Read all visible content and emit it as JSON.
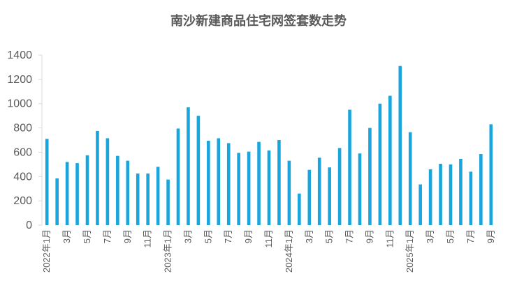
{
  "chart_data": {
    "type": "bar",
    "title": "南沙新建商品住宅网签套数走势",
    "categories": [
      "2022年1月",
      null,
      "3月",
      null,
      "5月",
      null,
      "7月",
      null,
      "9月",
      null,
      "11月",
      null,
      "2023年1月",
      null,
      "3月",
      null,
      "5月",
      null,
      "7月",
      null,
      "9月",
      null,
      "11月",
      null,
      "2024年1月",
      null,
      "3月",
      null,
      "5月",
      null,
      "7月",
      null,
      "9月",
      null,
      "11月",
      null,
      "2025年1月",
      null,
      "3月",
      null,
      "5月",
      null,
      "7月",
      null,
      "9月"
    ],
    "values": [
      710,
      385,
      520,
      510,
      575,
      775,
      715,
      570,
      530,
      425,
      425,
      480,
      375,
      795,
      970,
      900,
      695,
      715,
      675,
      595,
      605,
      685,
      615,
      700,
      530,
      260,
      455,
      555,
      475,
      635,
      950,
      590,
      800,
      1000,
      1065,
      1310,
      765,
      335,
      460,
      505,
      500,
      545,
      440,
      585,
      830
    ],
    "color": "#1aa5dc",
    "ylim": [
      0,
      1400
    ],
    "yticks": [
      0,
      200,
      400,
      600,
      800,
      1000,
      1200,
      1400
    ],
    "grid": false
  }
}
